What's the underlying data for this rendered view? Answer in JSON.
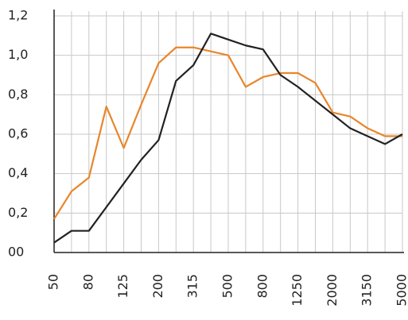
{
  "chart_data": {
    "type": "line",
    "categories": [
      "50",
      null,
      "80",
      null,
      "125",
      null,
      "200",
      null,
      "315",
      null,
      "500",
      null,
      "800",
      null,
      "1250",
      null,
      "2000",
      null,
      "3150",
      null,
      "5000"
    ],
    "series": [
      {
        "color": "#e8862b",
        "values": [
          0.17,
          0.31,
          0.38,
          0.74,
          0.53,
          0.75,
          0.96,
          1.04,
          1.04,
          1.02,
          1.0,
          0.84,
          0.89,
          0.91,
          0.91,
          0.86,
          0.71,
          0.69,
          0.63,
          0.59,
          0.59
        ]
      },
      {
        "color": "#222222",
        "values": [
          0.05,
          0.11,
          0.11,
          0.23,
          0.35,
          0.47,
          0.57,
          0.87,
          0.95,
          1.11,
          1.08,
          1.05,
          1.03,
          0.9,
          0.84,
          0.77,
          0.7,
          0.63,
          0.59,
          0.55,
          0.6
        ]
      }
    ],
    "ylim": [
      0,
      1.2
    ],
    "yticks": [
      {
        "value": 0,
        "label": "00"
      },
      {
        "value": 0.2,
        "label": "0,2"
      },
      {
        "value": 0.4,
        "label": "0,4"
      },
      {
        "value": 0.6,
        "label": "0,6"
      },
      {
        "value": 0.8,
        "label": "0,8"
      },
      {
        "value": 1.0,
        "label": "1,0"
      },
      {
        "value": 1.2,
        "label": "1,2"
      }
    ],
    "grid": true
  }
}
